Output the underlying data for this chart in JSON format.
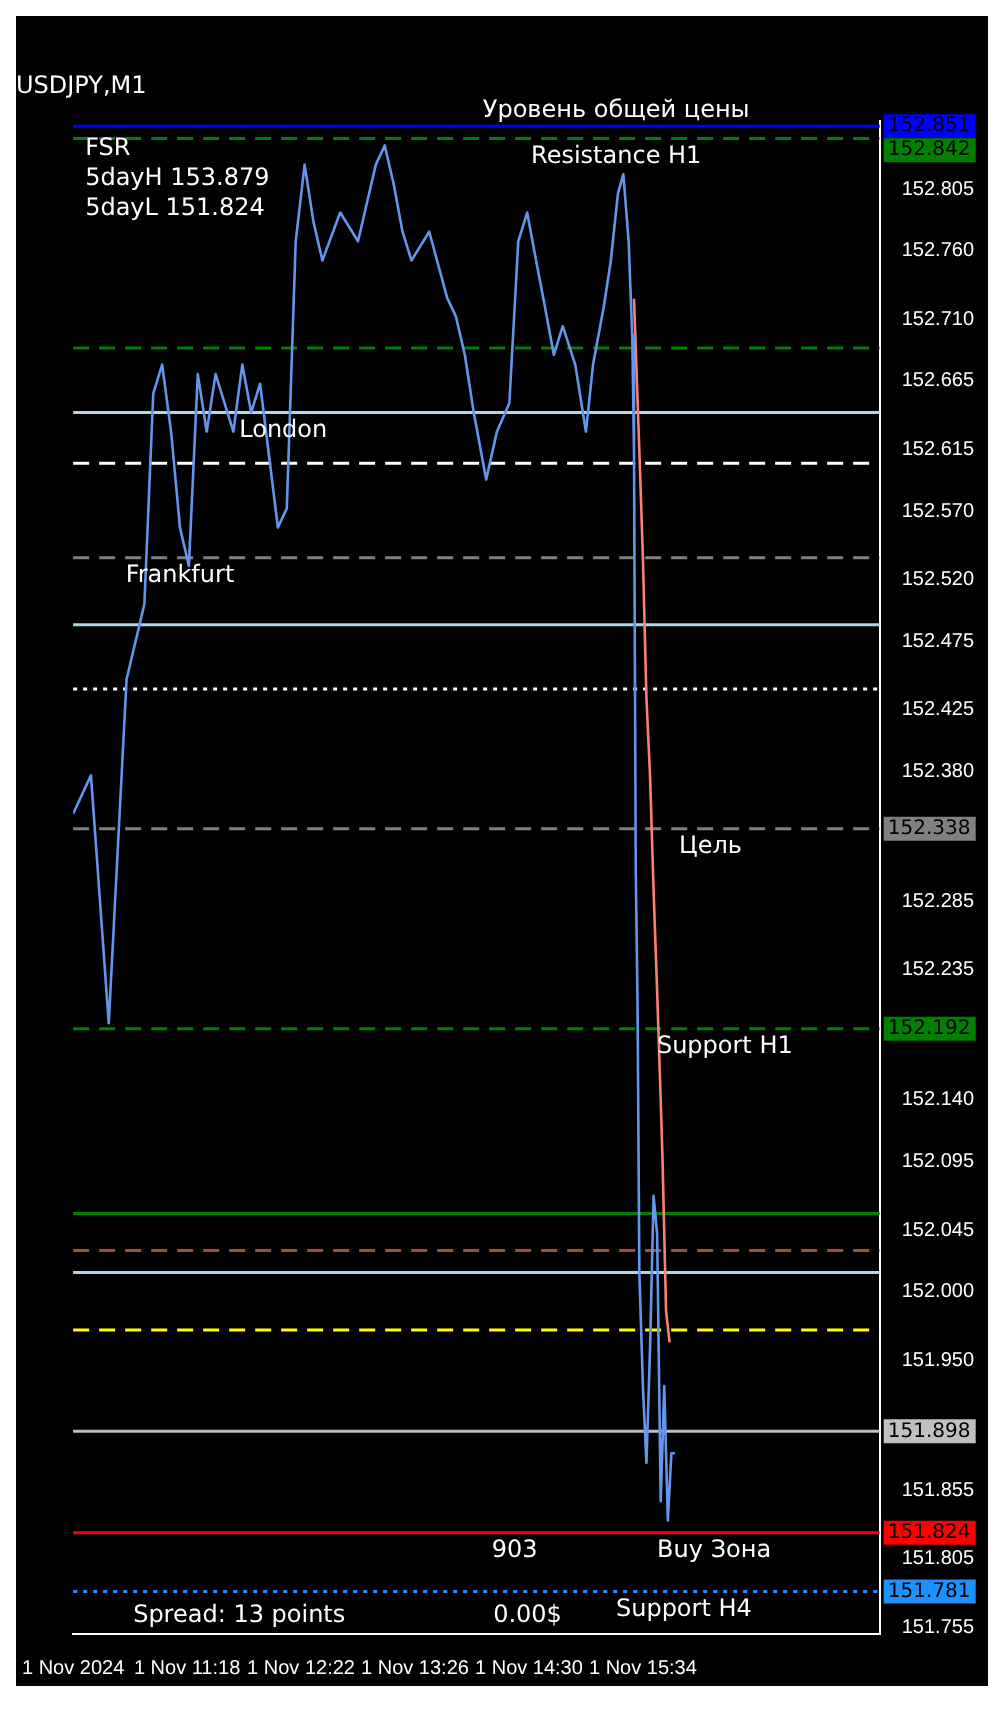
{
  "chart_data": {
    "type": "line",
    "title": "USDJPY,M1",
    "annotations": [
      "FSR",
      "5dayH 153.879",
      "5dayL 151.824",
      "Spread: 13 points",
      "0.00$",
      {
        "text": "Уровень общей цены",
        "x": "2024-11-01T15:19",
        "y": 152.851
      },
      {
        "text": "Resistance H1",
        "x": "2024-11-01T15:19",
        "y": 152.842
      },
      {
        "text": "London",
        "x": "2024-11-01T12:12",
        "y": 152.642
      },
      {
        "text": "Frankfurt",
        "x": "2024-11-01T11:14",
        "y": 152.536
      },
      {
        "text": "Цель",
        "x": "2024-11-01T16:12",
        "y": 152.338
      },
      {
        "text": "Support H1",
        "x": "2024-11-01T16:20",
        "y": 152.192
      },
      {
        "text": "903",
        "x": "2024-11-01T14:22",
        "y": 151.824
      },
      {
        "text": "Buy Зона",
        "x": "2024-11-01T16:14",
        "y": 151.824
      },
      {
        "text": "Support H4",
        "x": "2024-11-01T15:57",
        "y": 151.781
      }
    ],
    "series": [
      {
        "color": "#6495ed",
        "x": [
          "2024-11-01T10:14",
          "2024-11-01T10:24",
          "2024-11-01T10:34",
          "2024-11-01T10:44",
          "2024-11-01T10:54",
          "2024-11-01T10:59",
          "2024-11-01T11:04",
          "2024-11-01T11:09",
          "2024-11-01T11:14",
          "2024-11-01T11:19",
          "2024-11-01T11:24",
          "2024-11-01T11:29",
          "2024-11-01T11:34",
          "2024-11-01T11:44",
          "2024-11-01T11:49",
          "2024-11-01T11:54",
          "2024-11-01T11:59",
          "2024-11-01T12:09",
          "2024-11-01T12:14",
          "2024-11-01T12:19",
          "2024-11-01T12:24",
          "2024-11-01T12:29",
          "2024-11-01T12:34",
          "2024-11-01T12:44",
          "2024-11-01T12:54",
          "2024-11-01T13:04",
          "2024-11-01T13:09",
          "2024-11-01T13:14",
          "2024-11-01T13:19",
          "2024-11-01T13:24",
          "2024-11-01T13:34",
          "2024-11-01T13:44",
          "2024-11-01T13:49",
          "2024-11-01T13:54",
          "2024-11-01T13:59",
          "2024-11-01T14:06",
          "2024-11-01T14:12",
          "2024-11-01T14:19",
          "2024-11-01T14:24",
          "2024-11-01T14:29",
          "2024-11-01T14:34",
          "2024-11-01T14:39",
          "2024-11-01T14:44",
          "2024-11-01T14:49",
          "2024-11-01T14:56",
          "2024-11-01T15:02",
          "2024-11-01T15:06",
          "2024-11-01T15:12",
          "2024-11-01T15:16",
          "2024-11-01T15:20",
          "2024-11-01T15:23",
          "2024-11-01T15:26",
          "2024-11-01T15:28",
          "2024-11-01T15:29",
          "2024-11-01T15:30",
          "2024-11-01T15:31",
          "2024-11-01T15:32",
          "2024-11-01T15:34",
          "2024-11-01T15:36",
          "2024-11-01T15:38",
          "2024-11-01T15:40",
          "2024-11-01T15:42",
          "2024-11-01T15:44",
          "2024-11-01T15:46",
          "2024-11-01T15:48",
          "2024-11-01T15:50",
          "2024-11-01T15:52"
        ],
        "values": [
          152.349,
          152.377,
          152.196,
          152.447,
          152.502,
          152.656,
          152.677,
          152.628,
          152.558,
          152.53,
          152.67,
          152.628,
          152.67,
          152.628,
          152.677,
          152.642,
          152.663,
          152.558,
          152.572,
          152.767,
          152.823,
          152.781,
          152.753,
          152.788,
          152.767,
          152.823,
          152.837,
          152.809,
          152.774,
          152.753,
          152.774,
          152.726,
          152.712,
          152.684,
          152.642,
          152.593,
          152.628,
          152.649,
          152.767,
          152.788,
          152.753,
          152.719,
          152.684,
          152.705,
          152.677,
          152.628,
          152.677,
          152.719,
          152.753,
          152.802,
          152.816,
          152.767,
          152.698,
          152.614,
          152.307,
          152.209,
          152.014,
          151.931,
          151.875,
          151.958,
          152.07,
          152.042,
          151.847,
          151.931,
          151.833,
          151.882,
          151.882
        ]
      },
      {
        "color": "#fa8072",
        "x": [
          "2024-11-01T15:29",
          "2024-11-01T15:30",
          "2024-11-01T15:32",
          "2024-11-01T15:34",
          "2024-11-01T15:36",
          "2024-11-01T15:38",
          "2024-11-01T15:40",
          "2024-11-01T15:42",
          "2024-11-01T15:44",
          "2024-11-01T15:45",
          "2024-11-01T15:47",
          "2024-11-01T15:49"
        ],
        "values": [
          152.725,
          152.688,
          152.614,
          152.536,
          152.433,
          152.377,
          152.293,
          152.219,
          152.14,
          152.098,
          151.986,
          151.963
        ]
      }
    ],
    "xlim": [
      "2024-11-01T10:14",
      "2024-11-01T17:47"
    ],
    "xticks": [
      {
        "value": "2024-11-01T10:14",
        "label": "1 Nov 2024"
      },
      {
        "value": "2024-11-01T11:18",
        "label": "1 Nov 11:18"
      },
      {
        "value": "2024-11-01T12:22",
        "label": "1 Nov 12:22"
      },
      {
        "value": "2024-11-01T13:26",
        "label": "1 Nov 13:26"
      },
      {
        "value": "2024-11-01T14:30",
        "label": "1 Nov 14:30"
      },
      {
        "value": "2024-11-01T15:34",
        "label": "1 Nov 15:34"
      }
    ],
    "ylim": [
      151.75,
      152.855
    ],
    "yticks": [
      {
        "value": 152.805,
        "label": "152.805"
      },
      {
        "value": 152.76,
        "label": "152.760"
      },
      {
        "value": 152.71,
        "label": "152.710"
      },
      {
        "value": 152.665,
        "label": "152.665"
      },
      {
        "value": 152.615,
        "label": "152.615"
      },
      {
        "value": 152.57,
        "label": "152.570"
      },
      {
        "value": 152.52,
        "label": "152.520"
      },
      {
        "value": 152.475,
        "label": "152.475"
      },
      {
        "value": 152.425,
        "label": "152.425"
      },
      {
        "value": 152.38,
        "label": "152.380"
      },
      {
        "value": 152.285,
        "label": "152.285"
      },
      {
        "value": 152.235,
        "label": "152.235"
      },
      {
        "value": 152.14,
        "label": "152.140"
      },
      {
        "value": 152.095,
        "label": "152.095"
      },
      {
        "value": 152.045,
        "label": "152.045"
      },
      {
        "value": 152.0,
        "label": "152.000"
      },
      {
        "value": 151.95,
        "label": "151.950"
      },
      {
        "value": 151.855,
        "label": "151.855"
      },
      {
        "value": 151.805,
        "label": "151.805"
      },
      {
        "value": 151.755,
        "label": "151.755"
      }
    ],
    "ref_lines": [
      {
        "axis": "y",
        "value": 152.851,
        "label": "152.851",
        "color": "#0000ff",
        "line_style": "solid"
      },
      {
        "axis": "y",
        "value": 152.842,
        "label": "152.842",
        "color": "#008000",
        "line_style": "dashed"
      },
      {
        "axis": "y",
        "value": 152.689,
        "color": "#008000",
        "line_style": "dashed"
      },
      {
        "axis": "y",
        "value": 152.642,
        "color": "#add8e6",
        "line_style": "solid"
      },
      {
        "axis": "y",
        "value": 152.605,
        "color": "#ffffff",
        "line_style": "dashed"
      },
      {
        "axis": "y",
        "value": 152.536,
        "color": "#808080",
        "line_style": "dashed"
      },
      {
        "axis": "y",
        "value": 152.487,
        "color": "#add8e6",
        "line_style": "solid"
      },
      {
        "axis": "y",
        "value": 152.44,
        "color": "#ffffff",
        "line_style": "dotted"
      },
      {
        "axis": "y",
        "value": 152.338,
        "label": "152.338",
        "color": "#808080",
        "line_style": "dashed"
      },
      {
        "axis": "y",
        "value": 152.192,
        "label": "152.192",
        "color": "#008000",
        "line_style": "dashed"
      },
      {
        "axis": "y",
        "value": 152.057,
        "color": "#008000",
        "line_style": "solid"
      },
      {
        "axis": "y",
        "value": 152.03,
        "color": "#a0522d",
        "line_style": "dashed"
      },
      {
        "axis": "y",
        "value": 152.014,
        "color": "#add8e6",
        "line_style": "solid"
      },
      {
        "axis": "y",
        "value": 151.972,
        "color": "#ffff00",
        "line_style": "dashed"
      },
      {
        "axis": "y",
        "value": 151.898,
        "label": "151.898",
        "color": "#c0c0c0",
        "line_style": "solid"
      },
      {
        "axis": "y",
        "value": 151.824,
        "label": "151.824",
        "color": "#ff0000",
        "line_style": "solid"
      },
      {
        "axis": "y",
        "value": 151.781,
        "label": "151.781",
        "color": "#1e90ff",
        "line_style": "dotted"
      }
    ],
    "grid": false,
    "legend": false,
    "marker": "none",
    "line_style": "solid"
  }
}
